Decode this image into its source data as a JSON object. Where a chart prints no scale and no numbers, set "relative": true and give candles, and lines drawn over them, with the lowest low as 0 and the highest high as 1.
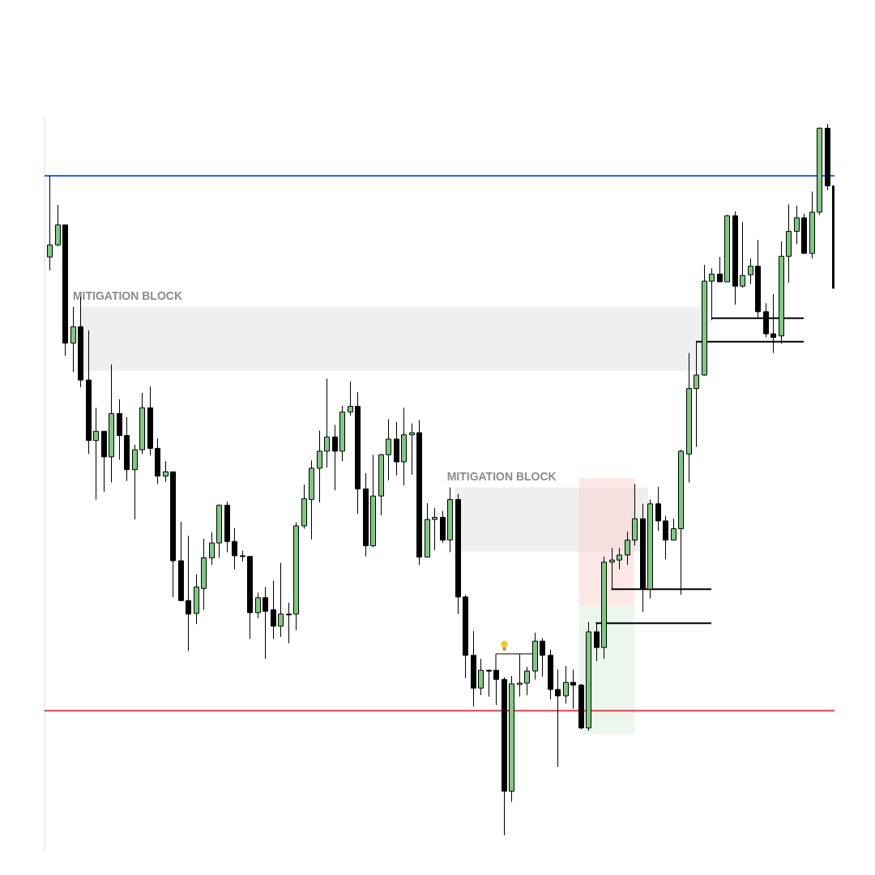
{
  "chart_data": {
    "type": "candlestick",
    "relative": true,
    "tick_labels": false,
    "categories": [
      null,
      null,
      null,
      null,
      null,
      null,
      null,
      null,
      null,
      null,
      null,
      null,
      null,
      null,
      null,
      null,
      null,
      null,
      null,
      null,
      null,
      null,
      null,
      null,
      null,
      null,
      null,
      null,
      null,
      null,
      null,
      null,
      null,
      null,
      null,
      null,
      null,
      null,
      null,
      null,
      null,
      null,
      null,
      null,
      null,
      null,
      null,
      null,
      null,
      null,
      null,
      null,
      null,
      null,
      null,
      null,
      null,
      null,
      null,
      null,
      null,
      null,
      null,
      null,
      null,
      null,
      null,
      null,
      null,
      null,
      null,
      null,
      null,
      null,
      null,
      null,
      null,
      null,
      null,
      null,
      null,
      null,
      null,
      null,
      null,
      null,
      null,
      null,
      null,
      null,
      null,
      null,
      null,
      null,
      null,
      null,
      null,
      null,
      null,
      null,
      null,
      null,
      null
    ],
    "ohlc": [
      [
        0.813,
        0.927,
        0.794,
        0.83
      ],
      [
        0.83,
        0.886,
        0.828,
        0.858
      ],
      [
        0.858,
        0.858,
        0.674,
        0.692
      ],
      [
        0.692,
        0.743,
        0.651,
        0.715
      ],
      [
        0.715,
        0.757,
        0.63,
        0.64
      ],
      [
        0.64,
        0.71,
        0.536,
        0.555
      ],
      [
        0.555,
        0.601,
        0.472,
        0.568
      ],
      [
        0.568,
        0.568,
        0.483,
        0.532
      ],
      [
        0.532,
        0.662,
        0.496,
        0.593
      ],
      [
        0.593,
        0.613,
        0.528,
        0.562
      ],
      [
        0.562,
        0.588,
        0.498,
        0.514
      ],
      [
        0.514,
        0.549,
        0.444,
        0.542
      ],
      [
        0.542,
        0.622,
        0.536,
        0.601
      ],
      [
        0.601,
        0.631,
        0.534,
        0.544
      ],
      [
        0.544,
        0.558,
        0.494,
        0.505
      ],
      [
        0.505,
        0.526,
        0.497,
        0.511
      ],
      [
        0.511,
        0.511,
        0.335,
        0.386
      ],
      [
        0.386,
        0.441,
        0.329,
        0.33
      ],
      [
        0.33,
        0.421,
        0.259,
        0.311
      ],
      [
        0.312,
        0.367,
        0.297,
        0.349
      ],
      [
        0.347,
        0.417,
        0.317,
        0.39
      ],
      [
        0.39,
        0.426,
        0.38,
        0.411
      ],
      [
        0.411,
        0.465,
        0.39,
        0.464
      ],
      [
        0.464,
        0.469,
        0.398,
        0.413
      ],
      [
        0.413,
        0.432,
        0.374,
        0.393
      ],
      [
        0.393,
        0.4,
        0.385,
        0.393
      ],
      [
        0.392,
        0.392,
        0.276,
        0.313
      ],
      [
        0.313,
        0.341,
        0.305,
        0.334
      ],
      [
        0.334,
        0.349,
        0.248,
        0.315
      ],
      [
        0.317,
        0.358,
        0.276,
        0.294
      ],
      [
        0.294,
        0.383,
        0.279,
        0.311
      ],
      [
        0.311,
        0.327,
        0.27,
        0.311
      ],
      [
        0.311,
        0.44,
        0.288,
        0.435
      ],
      [
        0.435,
        0.493,
        0.431,
        0.473
      ],
      [
        0.472,
        0.527,
        0.416,
        0.516
      ],
      [
        0.516,
        0.569,
        0.468,
        0.54
      ],
      [
        0.54,
        0.642,
        0.517,
        0.56
      ],
      [
        0.56,
        0.577,
        0.485,
        0.54
      ],
      [
        0.54,
        0.604,
        0.526,
        0.595
      ],
      [
        0.595,
        0.638,
        0.59,
        0.603
      ],
      [
        0.603,
        0.623,
        0.452,
        0.487
      ],
      [
        0.487,
        0.509,
        0.392,
        0.407
      ],
      [
        0.407,
        0.535,
        0.405,
        0.477
      ],
      [
        0.477,
        0.536,
        0.45,
        0.535
      ],
      [
        0.535,
        0.585,
        0.499,
        0.557
      ],
      [
        0.557,
        0.581,
        0.506,
        0.525
      ],
      [
        0.525,
        0.601,
        0.492,
        0.563
      ],
      [
        0.563,
        0.579,
        0.507,
        0.566
      ],
      [
        0.566,
        0.584,
        0.38,
        0.391
      ],
      [
        0.391,
        0.467,
        0.391,
        0.444
      ],
      [
        0.444,
        0.46,
        0.401,
        0.447
      ],
      [
        0.447,
        0.456,
        0.411,
        0.415
      ],
      [
        0.415,
        0.489,
        0.398,
        0.472
      ],
      [
        0.472,
        0.48,
        0.311,
        0.335
      ],
      [
        0.335,
        0.338,
        0.221,
        0.253
      ],
      [
        0.253,
        0.287,
        0.181,
        0.207
      ],
      [
        0.207,
        0.248,
        0.197,
        0.232
      ],
      [
        0.232,
        0.233,
        0.195,
        0.232
      ],
      [
        0.232,
        0.232,
        0.183,
        0.219
      ],
      [
        0.219,
        0.222,
        0,
        0.062
      ],
      [
        0.062,
        0.224,
        0.047,
        0.213
      ],
      [
        0.212,
        0.255,
        0.195,
        0.214
      ],
      [
        0.214,
        0.237,
        0.197,
        0.231
      ],
      [
        0.231,
        0.285,
        0.219,
        0.273
      ],
      [
        0.273,
        0.277,
        0.223,
        0.253
      ],
      [
        0.253,
        0.261,
        0.191,
        0.205
      ],
      [
        0.205,
        0.233,
        0.096,
        0.196
      ],
      [
        0.196,
        0.238,
        0.185,
        0.215
      ],
      [
        0.215,
        0.233,
        0.178,
        0.211
      ],
      [
        0.211,
        0.213,
        0.149,
        0.151
      ],
      [
        0.151,
        0.3,
        0.147,
        0.286
      ],
      [
        0.286,
        0.3,
        0.245,
        0.264
      ],
      [
        0.264,
        0.392,
        0.248,
        0.384
      ],
      [
        0.384,
        0.404,
        0.346,
        0.387
      ],
      [
        0.387,
        0.404,
        0.374,
        0.394
      ],
      [
        0.394,
        0.427,
        0.38,
        0.415
      ],
      [
        0.415,
        0.494,
        0.407,
        0.445
      ],
      [
        0.445,
        0.466,
        0.314,
        0.346
      ],
      [
        0.346,
        0.472,
        0.333,
        0.466
      ],
      [
        0.466,
        0.49,
        0.428,
        0.442
      ],
      [
        0.442,
        0.449,
        0.388,
        0.415
      ],
      [
        0.415,
        0.445,
        0.415,
        0.431
      ],
      [
        0.431,
        0.542,
        0.338,
        0.54
      ],
      [
        0.536,
        0.678,
        0.496,
        0.628
      ],
      [
        0.628,
        0.694,
        0.546,
        0.647
      ],
      [
        0.647,
        0.802,
        0.646,
        0.779
      ],
      [
        0.779,
        0.797,
        0.724,
        0.789
      ],
      [
        0.789,
        0.813,
        0.778,
        0.778
      ],
      [
        0.778,
        0.872,
        0.778,
        0.871
      ],
      [
        0.871,
        0.877,
        0.746,
        0.772
      ],
      [
        0.772,
        0.862,
        0.77,
        0.787
      ],
      [
        0.788,
        0.811,
        0.775,
        0.8
      ],
      [
        0.8,
        0.837,
        0.728,
        0.736
      ],
      [
        0.736,
        0.748,
        0.7,
        0.705
      ],
      [
        0.705,
        0.761,
        0.678,
        0.7
      ],
      [
        0.702,
        0.835,
        0.691,
        0.814
      ],
      [
        0.814,
        0.887,
        0.777,
        0.849
      ],
      [
        0.849,
        0.885,
        0.831,
        0.868
      ],
      [
        0.868,
        0.874,
        0.818,
        0.818
      ],
      [
        0.818,
        0.905,
        0.811,
        0.876
      ],
      [
        0.876,
        0.995,
        0.872,
        0.994
      ],
      [
        0.994,
        1,
        0.907,
        0.913
      ],
      [
        0.913,
        0.913,
        0.769,
        0.769
      ]
    ],
    "colors": [
      "#81c784",
      "#81c784",
      "#000000",
      "#81c784",
      "#000000",
      "#000000",
      "#81c784",
      "#000000",
      "#81c784",
      "#000000",
      "#000000",
      "#81c784",
      "#81c784",
      "#000000",
      "#000000",
      "#81c784",
      "#000000",
      "#000000",
      "#000000",
      "#81c784",
      "#81c784",
      "#81c784",
      "#81c784",
      "#000000",
      "#000000",
      "#000000",
      "#000000",
      "#81c784",
      "#000000",
      "#000000",
      "#81c784",
      "#000000",
      "#81c784",
      "#81c784",
      "#81c784",
      "#81c784",
      "#81c784",
      "#000000",
      "#81c784",
      "#81c784",
      "#000000",
      "#000000",
      "#81c784",
      "#81c784",
      "#81c784",
      "#000000",
      "#81c784",
      "#81c784",
      "#000000",
      "#81c784",
      "#81c784",
      "#000000",
      "#81c784",
      "#000000",
      "#000000",
      "#000000",
      "#81c784",
      "#000000",
      "#000000",
      "#000000",
      "#81c784",
      "#81c784",
      "#81c784",
      "#81c784",
      "#000000",
      "#000000",
      "#000000",
      "#81c784",
      "#000000",
      "#000000",
      "#81c784",
      "#000000",
      "#81c784",
      "#81c784",
      "#81c784",
      "#81c784",
      "#81c784",
      "#000000",
      "#81c784",
      "#000000",
      "#000000",
      "#81c784",
      "#81c784",
      "#81c784",
      "#81c784",
      "#81c784",
      "#81c784",
      "#000000",
      "#81c784",
      "#000000",
      "#81c784",
      "#81c784",
      "#000000",
      "#000000",
      "#000000",
      "#81c784",
      "#81c784",
      "#81c784",
      "#000000",
      "#81c784",
      "#81c784",
      "#000000",
      "#000000"
    ],
    "series": [
      {
        "type": "line",
        "color": "#000000",
        "values": [
          null,
          null,
          null,
          null,
          null,
          null,
          null,
          null,
          null,
          null,
          null,
          null,
          null,
          null,
          null,
          null,
          null,
          null,
          null,
          null,
          null,
          null,
          null,
          null,
          null,
          null,
          null,
          null,
          null,
          null,
          null,
          null,
          null,
          null,
          null,
          null,
          null,
          null,
          null,
          null,
          null,
          null,
          null,
          null,
          null,
          null,
          null,
          null,
          null,
          null,
          null,
          null,
          null,
          null,
          null,
          null,
          null,
          null,
          null,
          null,
          null,
          null,
          null,
          null,
          null,
          null,
          null,
          null,
          null,
          null,
          null,
          0.298,
          0.298,
          0.298,
          0.298,
          0.298,
          0.298,
          0.298,
          0.298,
          0.298,
          0.298,
          0.298,
          0.298,
          0.298,
          0.298,
          0.298,
          0.298,
          null,
          null,
          null,
          null,
          null,
          null,
          null,
          null,
          null,
          null,
          null,
          null,
          null,
          null,
          null,
          null
        ]
      },
      {
        "type": "line",
        "color": "#000000",
        "values": [
          null,
          null,
          null,
          null,
          null,
          null,
          null,
          null,
          null,
          null,
          null,
          null,
          null,
          null,
          null,
          null,
          null,
          null,
          null,
          null,
          null,
          null,
          null,
          null,
          null,
          null,
          null,
          null,
          null,
          null,
          null,
          null,
          null,
          null,
          null,
          null,
          null,
          null,
          null,
          null,
          null,
          null,
          null,
          null,
          null,
          null,
          null,
          null,
          null,
          null,
          null,
          null,
          null,
          null,
          null,
          null,
          null,
          null,
          null,
          null,
          null,
          null,
          null,
          null,
          null,
          null,
          null,
          null,
          null,
          null,
          null,
          null,
          null,
          0.346,
          0.346,
          0.346,
          0.346,
          0.346,
          0.346,
          0.346,
          0.346,
          0.346,
          0.346,
          0.346,
          0.346,
          0.346,
          0.346,
          null,
          null,
          null,
          null,
          null,
          null,
          null,
          null,
          null,
          null,
          null,
          null,
          null,
          null,
          null,
          null
        ]
      },
      {
        "type": "line",
        "color": "#000000",
        "values": [
          null,
          null,
          null,
          null,
          null,
          null,
          null,
          null,
          null,
          null,
          null,
          null,
          null,
          null,
          null,
          null,
          null,
          null,
          null,
          null,
          null,
          null,
          null,
          null,
          null,
          null,
          null,
          null,
          null,
          null,
          null,
          null,
          null,
          null,
          null,
          null,
          null,
          null,
          null,
          null,
          null,
          null,
          null,
          null,
          null,
          null,
          null,
          null,
          null,
          null,
          null,
          null,
          null,
          null,
          null,
          null,
          null,
          null,
          null,
          null,
          null,
          null,
          null,
          null,
          null,
          null,
          null,
          null,
          null,
          null,
          null,
          null,
          null,
          null,
          null,
          null,
          null,
          null,
          null,
          null,
          null,
          null,
          null,
          null,
          0.694,
          0.694,
          0.694,
          0.694,
          0.694,
          0.694,
          0.694,
          0.694,
          0.694,
          0.694,
          0.694,
          0.694,
          0.694,
          0.694,
          0.694,
          null,
          null,
          null,
          null
        ]
      },
      {
        "type": "line",
        "color": "#000000",
        "values": [
          null,
          null,
          null,
          null,
          null,
          null,
          null,
          null,
          null,
          null,
          null,
          null,
          null,
          null,
          null,
          null,
          null,
          null,
          null,
          null,
          null,
          null,
          null,
          null,
          null,
          null,
          null,
          null,
          null,
          null,
          null,
          null,
          null,
          null,
          null,
          null,
          null,
          null,
          null,
          null,
          null,
          null,
          null,
          null,
          null,
          null,
          null,
          null,
          null,
          null,
          null,
          null,
          null,
          null,
          null,
          null,
          null,
          null,
          null,
          null,
          null,
          null,
          null,
          null,
          null,
          null,
          null,
          null,
          null,
          null,
          null,
          null,
          null,
          null,
          null,
          null,
          null,
          null,
          null,
          null,
          null,
          null,
          null,
          null,
          null,
          null,
          0.727,
          0.727,
          0.727,
          0.727,
          0.727,
          0.727,
          0.727,
          0.727,
          0.727,
          0.727,
          0.727,
          0.727,
          0.727,
          null,
          null,
          null,
          null
        ]
      }
    ],
    "ref_lines": [
      {
        "axis": "y",
        "value": 0.927,
        "color": "#2962ff"
      },
      {
        "axis": "y",
        "value": 0.175,
        "color": "#f23645"
      }
    ],
    "bands": [
      {
        "axis": "y",
        "from": 0.653,
        "to": 0.743,
        "label": "MITIGATION BLOCK",
        "color": "#efefef"
      },
      {
        "axis": "y",
        "from": 0.399,
        "to": 0.489,
        "label": "MITIGATION BLOCK",
        "color": "#efefef"
      },
      {
        "axis": "y",
        "from": 0.322,
        "to": 0.502,
        "color": "#fde8e8"
      },
      {
        "axis": "y",
        "from": 0.142,
        "to": 0.322,
        "color": "#ecf6ed"
      }
    ]
  }
}
